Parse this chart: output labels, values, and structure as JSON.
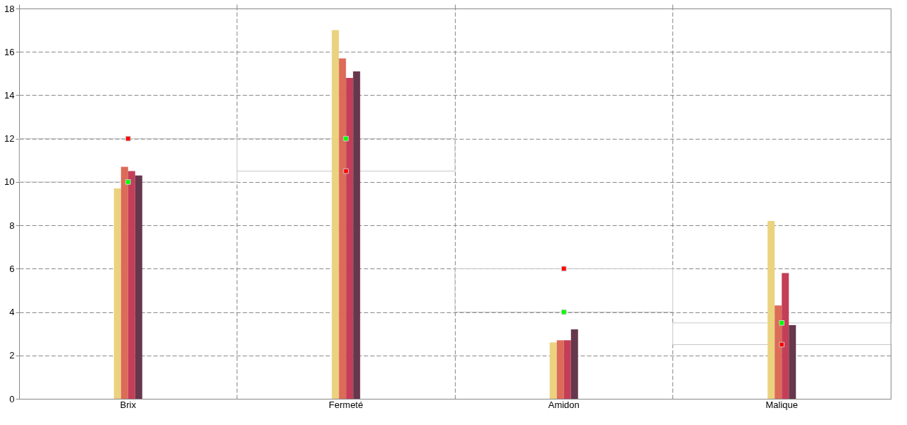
{
  "chart_data": {
    "type": "bar",
    "categories": [
      "Brix",
      "Fermeté",
      "Amidon",
      "Malique"
    ],
    "series": [
      {
        "type": "bar",
        "base": [
          10,
          10.5,
          4,
          2.5
        ],
        "values": [
          2,
          1.5,
          2,
          1
        ],
        "color": "#c8c8c8"
      },
      {
        "values": [
          9.7,
          17.0,
          2.6,
          8.2
        ],
        "color": "#ebd27f"
      },
      {
        "values": [
          10.7,
          15.7,
          2.7,
          4.3
        ],
        "color": "#dc6b58"
      },
      {
        "values": [
          10.5,
          14.8,
          2.7,
          5.8
        ],
        "color": "#c43e57"
      },
      {
        "values": [
          10.3,
          15.1,
          3.2,
          3.4
        ],
        "color": "#66374d"
      },
      {
        "type": "scatter",
        "values": [
          10,
          12,
          4,
          3.5
        ],
        "color": "#00ff00"
      },
      {
        "type": "scatter",
        "values": [
          12,
          10.5,
          6,
          2.5
        ],
        "color": "#ff0000"
      }
    ],
    "ylim": [
      0,
      18
    ],
    "yticks": [
      0,
      2,
      4,
      6,
      8,
      10,
      12,
      14,
      16,
      18
    ],
    "grid": true,
    "legend": false,
    "marker": "square"
  }
}
